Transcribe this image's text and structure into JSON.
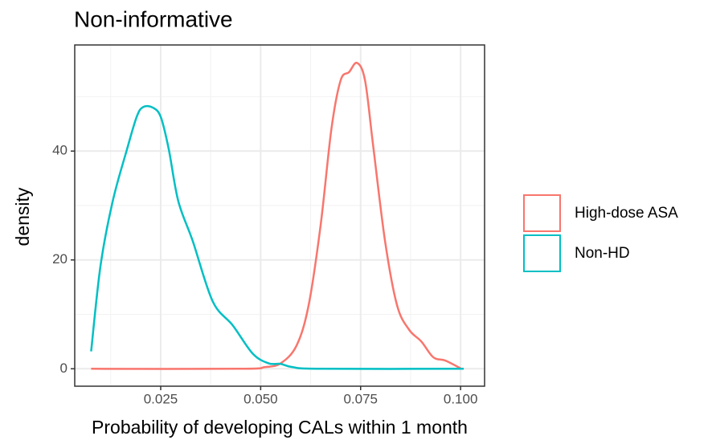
{
  "chart_data": {
    "type": "line",
    "title": "Non-informative",
    "xlabel": "Probability of developing CALs within 1 month",
    "ylabel": "density",
    "xlim": [
      0.0035,
      0.106
    ],
    "ylim": [
      -3.2,
      59.5
    ],
    "xticks": [
      0.025,
      {
        "value": 0.05,
        "label": "0.050"
      },
      0.075,
      {
        "value": 0.1,
        "label": "0.100"
      }
    ],
    "yticks": [
      0,
      20,
      40
    ],
    "xminor": [
      0.0125,
      0.0375,
      0.0625,
      0.0875
    ],
    "yminor": [
      10,
      30,
      50
    ],
    "grid": true,
    "legend": "right",
    "series": [
      {
        "name": "High-dose ASA",
        "color": "#F8766D",
        "x": [
          0.0076,
          0.045,
          0.051,
          0.055,
          0.059,
          0.062,
          0.065,
          0.0677,
          0.07,
          0.0721,
          0.0741,
          0.0761,
          0.0781,
          0.0811,
          0.0841,
          0.0871,
          0.0902,
          0.0932,
          0.0962,
          0.1002
        ],
        "values": [
          0,
          0,
          0.3,
          1,
          4.3,
          11.7,
          26.4,
          44.1,
          53,
          54.5,
          56.2,
          53,
          41.2,
          23.5,
          11.7,
          7.2,
          5,
          2.1,
          1.5,
          0
        ]
      },
      {
        "name": "Non-HD",
        "color": "#00BFC4",
        "x": [
          0.0076,
          0.00996,
          0.013,
          0.0166,
          0.019,
          0.0206,
          0.023,
          0.025,
          0.027,
          0.0294,
          0.033,
          0.038,
          0.043,
          0.048,
          0.052,
          0.055,
          0.058,
          0.065,
          0.1008
        ],
        "values": [
          3.2,
          19,
          30.8,
          40.4,
          46.3,
          48.1,
          48,
          46.3,
          40.4,
          30.8,
          23.5,
          12.4,
          8,
          2.8,
          1,
          0.9,
          0.3,
          0,
          0
        ]
      }
    ]
  }
}
